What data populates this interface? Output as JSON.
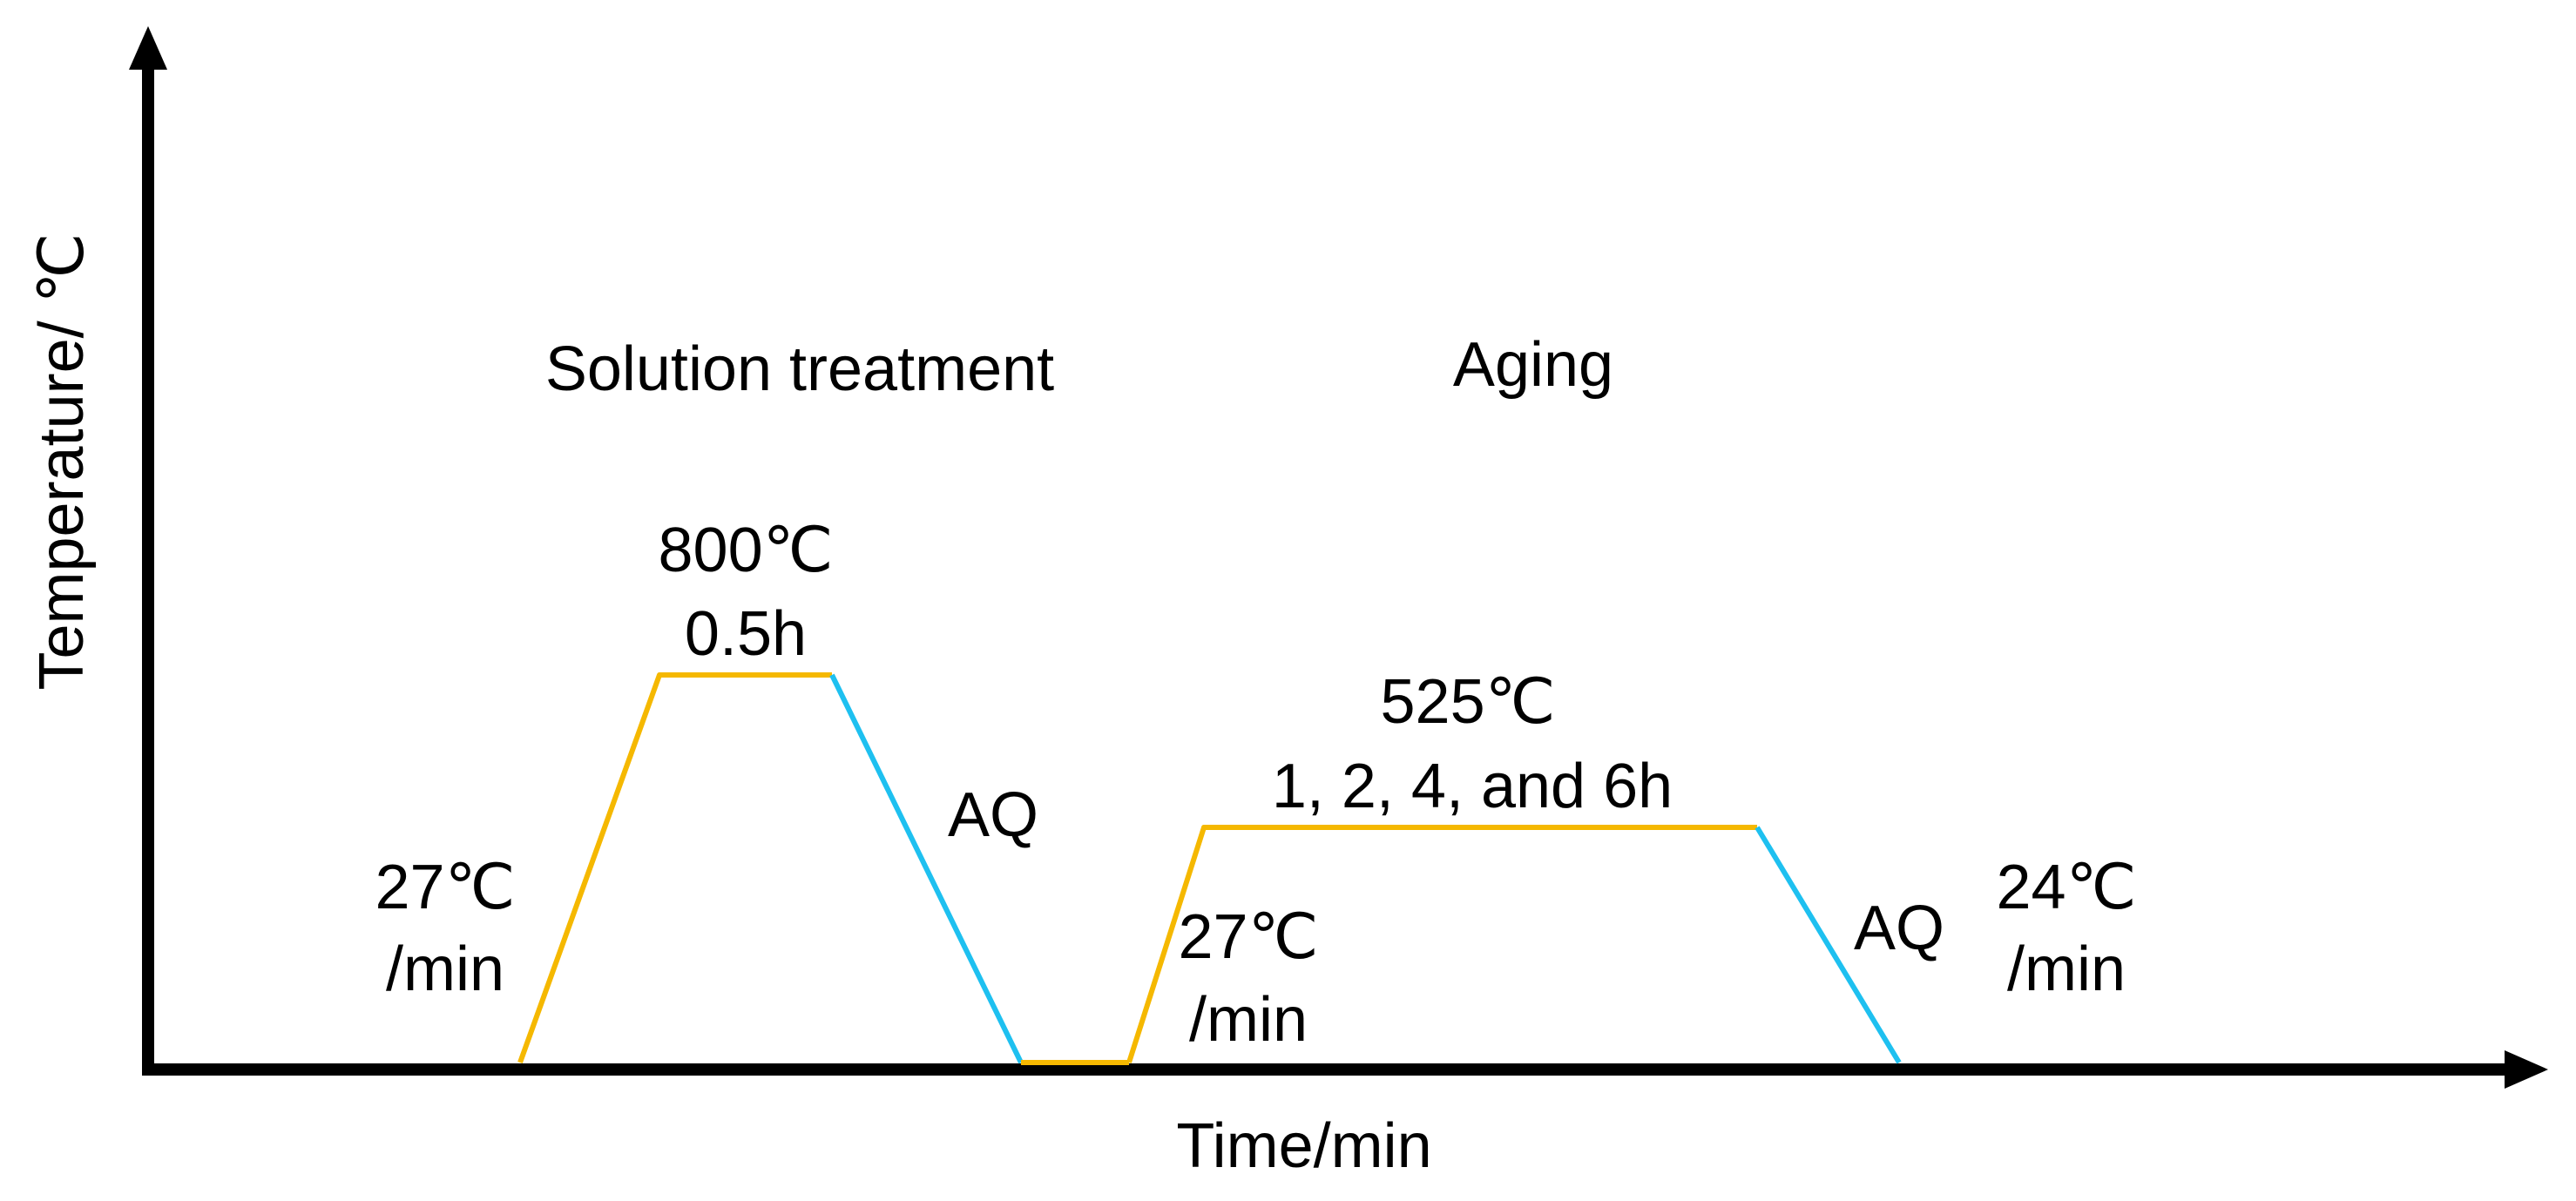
{
  "axes": {
    "y_label": "Temperature/ ℃",
    "x_label": "Time/min"
  },
  "phases": {
    "solution": "Solution treatment",
    "aging": "Aging"
  },
  "solution_treatment": {
    "hold_temperature": "800℃",
    "hold_time": "0.5h",
    "heating_rate_value": "27℃",
    "heating_rate_unit": "/min",
    "quench": "AQ"
  },
  "aging": {
    "hold_temperature": "525℃",
    "hold_times": "1, 2, 4, and 6h",
    "heating_rate_value": "27℃",
    "heating_rate_unit": "/min",
    "quench": "AQ",
    "cooling_rate_value": "24℃",
    "cooling_rate_unit": "/min"
  },
  "colors": {
    "axis": "#000000",
    "heating_and_hold": "#F5B800",
    "quench": "#1EC0F0",
    "text": "#000000"
  }
}
